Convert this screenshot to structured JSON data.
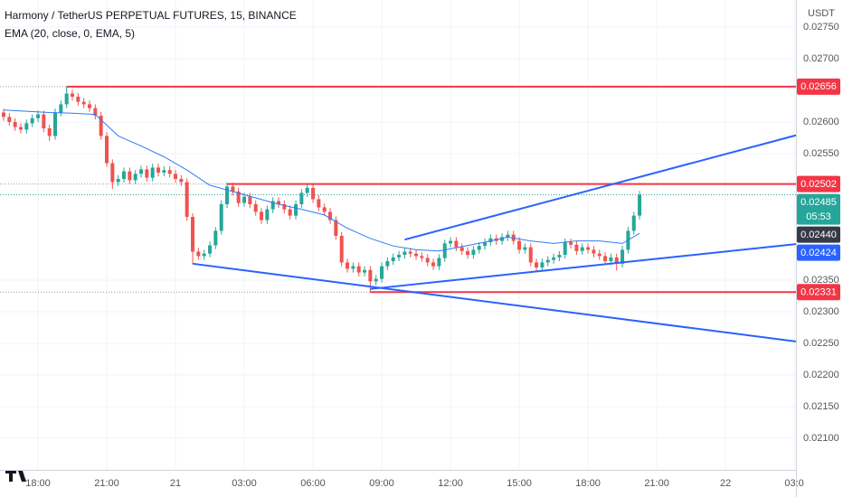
{
  "chart_data": {
    "type": "candlestick",
    "title": "Harmony / TetherUS PERPETUAL FUTURES, 15, BINANCE",
    "indicator": "EMA (20, close, 0, EMA, 5)",
    "currency": "USDT",
    "countdown": "05:53",
    "up_color": "#26a69a",
    "down_color": "#ef5350",
    "x": [
      0,
      1,
      2,
      3,
      4,
      5,
      6,
      7,
      8,
      9,
      10,
      11,
      12,
      13,
      14,
      15,
      16,
      17,
      18,
      19,
      20,
      21,
      22,
      23,
      24,
      25,
      26,
      27,
      28,
      29,
      30,
      31,
      32,
      33,
      34,
      35,
      36,
      37,
      38,
      39,
      40,
      41,
      42,
      43,
      44,
      45,
      46,
      47,
      48,
      49,
      50,
      51,
      52,
      53,
      54,
      55,
      56,
      57,
      58,
      59,
      60,
      61,
      62,
      63,
      64,
      65,
      66,
      67,
      68,
      69,
      70,
      71,
      72,
      73,
      74,
      75,
      76,
      77,
      78,
      79,
      80,
      81,
      82,
      83,
      84,
      85,
      86,
      87,
      88,
      89,
      90,
      91,
      92,
      93,
      94,
      95,
      96,
      97,
      98,
      99,
      100,
      101,
      102,
      103,
      104,
      105,
      106,
      107,
      108,
      109,
      110,
      111
    ],
    "open": [
      0.02615,
      0.02608,
      0.026,
      0.02592,
      0.02588,
      0.02598,
      0.02606,
      0.02612,
      0.0259,
      0.02578,
      0.02615,
      0.02628,
      0.02645,
      0.0264,
      0.02632,
      0.02628,
      0.02622,
      0.0261,
      0.02578,
      0.02535,
      0.02505,
      0.0251,
      0.02522,
      0.02508,
      0.02518,
      0.02525,
      0.02512,
      0.02528,
      0.0252,
      0.02524,
      0.02518,
      0.0251,
      0.02505,
      0.0245,
      0.02395,
      0.02388,
      0.02392,
      0.02405,
      0.02428,
      0.0247,
      0.02498,
      0.0249,
      0.02472,
      0.02482,
      0.0247,
      0.02458,
      0.02445,
      0.02462,
      0.02475,
      0.0247,
      0.02462,
      0.02452,
      0.0247,
      0.02488,
      0.02496,
      0.02478,
      0.02465,
      0.02458,
      0.02445,
      0.0242,
      0.02378,
      0.02368,
      0.02372,
      0.02362,
      0.02366,
      0.02348,
      0.02352,
      0.02372,
      0.0238,
      0.02386,
      0.0239,
      0.02395,
      0.02392,
      0.02388,
      0.02385,
      0.02378,
      0.02372,
      0.02385,
      0.02408,
      0.02412,
      0.02402,
      0.02396,
      0.0239,
      0.02398,
      0.02404,
      0.0241,
      0.02416,
      0.02412,
      0.02418,
      0.02422,
      0.02412,
      0.02398,
      0.02402,
      0.02378,
      0.0237,
      0.02378,
      0.02382,
      0.02386,
      0.0239,
      0.0241,
      0.02406,
      0.02396,
      0.02402,
      0.02398,
      0.02392,
      0.02388,
      0.0238,
      0.02386,
      0.02376,
      0.02398,
      0.02428,
      0.02452
    ],
    "high": [
      0.02621,
      0.02614,
      0.02606,
      0.02598,
      0.02604,
      0.02612,
      0.02618,
      0.02618,
      0.02596,
      0.02621,
      0.02634,
      0.02656,
      0.02651,
      0.02646,
      0.02638,
      0.02634,
      0.02628,
      0.02616,
      0.02584,
      0.02541,
      0.02516,
      0.02528,
      0.02528,
      0.02524,
      0.02531,
      0.02531,
      0.02534,
      0.02534,
      0.0253,
      0.0253,
      0.02524,
      0.02516,
      0.02511,
      0.02456,
      0.02401,
      0.02398,
      0.02411,
      0.02434,
      0.02476,
      0.02504,
      0.02504,
      0.02496,
      0.02488,
      0.02488,
      0.02476,
      0.02464,
      0.02468,
      0.02481,
      0.02481,
      0.02476,
      0.02468,
      0.02476,
      0.02494,
      0.02502,
      0.02502,
      0.02484,
      0.02471,
      0.02464,
      0.02451,
      0.02426,
      0.02384,
      0.02378,
      0.02378,
      0.02372,
      0.02372,
      0.02358,
      0.02378,
      0.02386,
      0.02392,
      0.02396,
      0.02401,
      0.02401,
      0.02398,
      0.02394,
      0.02391,
      0.02384,
      0.02391,
      0.02414,
      0.02418,
      0.02418,
      0.02408,
      0.02402,
      0.02404,
      0.0241,
      0.02416,
      0.02422,
      0.02422,
      0.02424,
      0.02428,
      0.02428,
      0.02418,
      0.02408,
      0.02408,
      0.02384,
      0.02384,
      0.02388,
      0.02392,
      0.02396,
      0.02416,
      0.02416,
      0.02412,
      0.02408,
      0.02408,
      0.02404,
      0.02398,
      0.02394,
      0.02392,
      0.02392,
      0.02404,
      0.02434,
      0.02458,
      0.02491
    ],
    "low": [
      0.02602,
      0.02594,
      0.02586,
      0.02582,
      0.02582,
      0.02592,
      0.026,
      0.02584,
      0.0257,
      0.02572,
      0.02609,
      0.02622,
      0.02634,
      0.02626,
      0.02622,
      0.02616,
      0.02604,
      0.02572,
      0.02529,
      0.02494,
      0.02499,
      0.02504,
      0.02502,
      0.02502,
      0.02512,
      0.02506,
      0.02506,
      0.02514,
      0.02514,
      0.02512,
      0.02504,
      0.02499,
      0.02444,
      0.02375,
      0.02382,
      0.02382,
      0.02386,
      0.02399,
      0.02422,
      0.02464,
      0.02484,
      0.02466,
      0.02466,
      0.02464,
      0.02452,
      0.02439,
      0.02439,
      0.02456,
      0.02464,
      0.02456,
      0.02446,
      0.02446,
      0.02464,
      0.02482,
      0.02472,
      0.02459,
      0.02452,
      0.02439,
      0.02414,
      0.02372,
      0.02362,
      0.02362,
      0.02356,
      0.02356,
      0.02331,
      0.02342,
      0.02346,
      0.02366,
      0.02374,
      0.0238,
      0.02384,
      0.02386,
      0.02382,
      0.02379,
      0.02372,
      0.02366,
      0.02366,
      0.02379,
      0.02402,
      0.02396,
      0.0239,
      0.02384,
      0.02384,
      0.02392,
      0.02398,
      0.02404,
      0.02406,
      0.02406,
      0.02412,
      0.02406,
      0.02392,
      0.02392,
      0.02372,
      0.02364,
      0.02364,
      0.02372,
      0.02376,
      0.0238,
      0.02384,
      0.024,
      0.0239,
      0.0239,
      0.02392,
      0.02386,
      0.02382,
      0.02374,
      0.02374,
      0.02365,
      0.0237,
      0.02392,
      0.02422,
      0.02446
    ],
    "close": [
      0.02608,
      0.026,
      0.02592,
      0.02588,
      0.02598,
      0.02606,
      0.02612,
      0.0259,
      0.02578,
      0.02615,
      0.02628,
      0.02645,
      0.0264,
      0.02632,
      0.02628,
      0.02622,
      0.0261,
      0.02578,
      0.02535,
      0.02505,
      0.0251,
      0.02522,
      0.02508,
      0.02518,
      0.02525,
      0.02512,
      0.02528,
      0.0252,
      0.02524,
      0.02518,
      0.0251,
      0.02505,
      0.0245,
      0.02395,
      0.02388,
      0.02392,
      0.02405,
      0.02428,
      0.0247,
      0.02498,
      0.0249,
      0.02472,
      0.02482,
      0.0247,
      0.02458,
      0.02445,
      0.02462,
      0.02475,
      0.0247,
      0.02462,
      0.02452,
      0.0247,
      0.02488,
      0.02496,
      0.02478,
      0.02465,
      0.02458,
      0.02445,
      0.0242,
      0.02378,
      0.02368,
      0.02372,
      0.02362,
      0.02366,
      0.02348,
      0.02352,
      0.02372,
      0.0238,
      0.02386,
      0.0239,
      0.02395,
      0.02392,
      0.02388,
      0.02385,
      0.02378,
      0.02372,
      0.02385,
      0.02408,
      0.02412,
      0.02402,
      0.02396,
      0.0239,
      0.02398,
      0.02404,
      0.0241,
      0.02416,
      0.02412,
      0.02418,
      0.02422,
      0.02412,
      0.02398,
      0.02402,
      0.02378,
      0.0237,
      0.02378,
      0.02382,
      0.02386,
      0.0239,
      0.0241,
      0.02406,
      0.02396,
      0.02402,
      0.02398,
      0.02392,
      0.02388,
      0.0238,
      0.02386,
      0.02376,
      0.02398,
      0.02428,
      0.02452,
      0.02485
    ],
    "ema": {
      "color": "#2f7bf5",
      "x": [
        0,
        4,
        8,
        12,
        16,
        20,
        24,
        28,
        32,
        36,
        40,
        44,
        48,
        52,
        56,
        60,
        64,
        68,
        72,
        76,
        80,
        84,
        88,
        92,
        96,
        100,
        104,
        108,
        111
      ],
      "values": [
        0.02619,
        0.02617,
        0.02615,
        0.02614,
        0.02612,
        0.02578,
        0.02562,
        0.02545,
        0.02524,
        0.025,
        0.0249,
        0.0248,
        0.0247,
        0.02462,
        0.02453,
        0.02432,
        0.02416,
        0.02404,
        0.02398,
        0.02396,
        0.02403,
        0.0241,
        0.02418,
        0.02412,
        0.02408,
        0.02412,
        0.02412,
        0.02408,
        0.02424
      ]
    },
    "hlines": [
      {
        "value": 0.02656,
        "x0": 11,
        "color": "#f23645"
      },
      {
        "value": 0.02502,
        "x0": 39,
        "color": "#f23645"
      },
      {
        "value": 0.02331,
        "x0": 64,
        "color": "#f23645"
      }
    ],
    "trendlines": [
      {
        "x": [
          33,
          138.3
        ],
        "y": [
          0.02376,
          0.02253
        ],
        "color": "#2962ff"
      },
      {
        "x": [
          64,
          138.3
        ],
        "y": [
          0.02336,
          0.02407
        ],
        "color": "#2962ff"
      },
      {
        "x": [
          70,
          138.3
        ],
        "y": [
          0.02414,
          0.02579
        ],
        "color": "#2962ff"
      }
    ],
    "price_labels": [
      {
        "value": 0.02656,
        "label": "0.02656",
        "color": "#f23645"
      },
      {
        "value": 0.02502,
        "label": "0.02502",
        "color": "#f23645"
      },
      {
        "value": 0.02485,
        "label": "0.02485",
        "color": "#26a69a"
      },
      {
        "value": 0.0244,
        "label": "0.02440",
        "color": "#363a45"
      },
      {
        "value": 0.02424,
        "label": "0.02424",
        "color": "#2962ff"
      },
      {
        "value": 0.02331,
        "label": "0.02331",
        "color": "#f23645"
      }
    ],
    "xlim": [
      -0.63,
      138.3
    ],
    "ylim": [
      0.0205,
      0.027929
    ],
    "grid": true,
    "xticks": [
      {
        "value": 6,
        "label": "18:00"
      },
      {
        "value": 18,
        "label": "21:00"
      },
      {
        "value": 30,
        "label": "21"
      },
      {
        "value": 42,
        "label": "03:00"
      },
      {
        "value": 54,
        "label": "06:00"
      },
      {
        "value": 66,
        "label": "09:00"
      },
      {
        "value": 78,
        "label": "12:00"
      },
      {
        "value": 90,
        "label": "15:00"
      },
      {
        "value": 102,
        "label": "18:00"
      },
      {
        "value": 114,
        "label": "21:00"
      },
      {
        "value": 126,
        "label": "22"
      },
      {
        "value": 138,
        "label": "03:0"
      }
    ],
    "yticks": [
      {
        "value": 0.0275,
        "label": "0.02750"
      },
      {
        "value": 0.027,
        "label": "0.02700"
      },
      {
        "value": 0.026,
        "label": "0.02600"
      },
      {
        "value": 0.0255,
        "label": "0.02550"
      },
      {
        "value": 0.0235,
        "label": "0.02350"
      },
      {
        "value": 0.023,
        "label": "0.02300"
      },
      {
        "value": 0.0225,
        "label": "0.02250"
      },
      {
        "value": 0.022,
        "label": "0.02200"
      },
      {
        "value": 0.0215,
        "label": "0.02150"
      },
      {
        "value": 0.021,
        "label": "0.02100"
      }
    ]
  }
}
